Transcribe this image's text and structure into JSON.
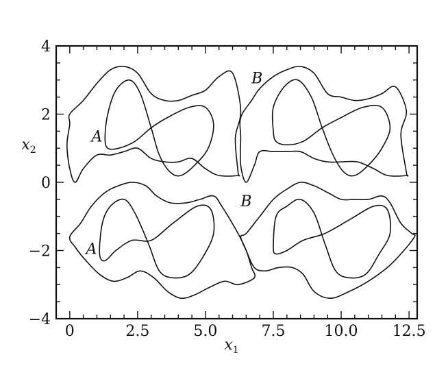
{
  "chart_data": {
    "type": "line",
    "title": "",
    "xlabel": "x",
    "xlabel_sub": "1",
    "ylabel": "x",
    "ylabel_sub": "2",
    "xlim": [
      -0.5,
      12.8
    ],
    "ylim": [
      -4,
      4
    ],
    "x_ticks": [
      0,
      2.5,
      5.0,
      7.5,
      10.0,
      12.5
    ],
    "x_tick_labels": [
      "0",
      "2.5",
      "5.0",
      "7.5",
      "10.0",
      "12.5"
    ],
    "y_ticks": [
      -4,
      -2,
      0,
      2,
      4
    ],
    "y_tick_labels": [
      "−4",
      "−2",
      "0",
      "2",
      "4"
    ],
    "grid": false,
    "annotations": [
      {
        "text": "A",
        "x": 1.0,
        "y": 1.2
      },
      {
        "text": "B",
        "x": 6.9,
        "y": 2.9
      },
      {
        "text": "A",
        "x": 0.8,
        "y": -2.1
      },
      {
        "text": "B",
        "x": 6.5,
        "y": -0.7
      }
    ],
    "series": [
      {
        "points": [
          [
            0,
            2
          ],
          [
            0.5,
            2.4
          ],
          [
            1,
            2.9
          ],
          [
            1.5,
            3.3
          ],
          [
            2,
            3.4
          ],
          [
            2.5,
            3.2
          ],
          [
            3,
            2.6
          ],
          [
            3.5,
            2.4
          ],
          [
            4,
            2.4
          ],
          [
            4.5,
            2.55
          ],
          [
            5,
            2.7
          ],
          [
            5.5,
            3.1
          ],
          [
            6,
            3.2
          ],
          [
            6.3,
            2.1
          ],
          [
            6.1,
            1.3
          ],
          [
            6.2,
            0.3
          ],
          [
            6.2,
            0.2
          ],
          [
            5.5,
            0.2
          ],
          [
            5,
            0.4
          ],
          [
            4.5,
            0.7
          ],
          [
            4,
            0.6
          ],
          [
            3.5,
            0.6
          ],
          [
            3,
            0.7
          ],
          [
            2.5,
            1.0
          ],
          [
            2,
            0.9
          ],
          [
            1.5,
            0.8
          ],
          [
            1,
            0.8
          ],
          [
            0.5,
            0.4
          ],
          [
            0.2,
            0
          ],
          [
            0,
            0.4
          ],
          [
            -0.1,
            1.1
          ],
          [
            0,
            1.7
          ],
          [
            0,
            2
          ]
        ]
      },
      {
        "points": [
          [
            6.3,
            1.9
          ],
          [
            6.7,
            2.4
          ],
          [
            7,
            2.75
          ],
          [
            7.5,
            3.1
          ],
          [
            8,
            3.3
          ],
          [
            8.5,
            3.4
          ],
          [
            9,
            3.2
          ],
          [
            9.5,
            2.6
          ],
          [
            10,
            2.5
          ],
          [
            10.5,
            2.4
          ],
          [
            11,
            2.45
          ],
          [
            11.5,
            2.6
          ],
          [
            12,
            2.8
          ],
          [
            12.4,
            2.1
          ],
          [
            12.2,
            1.4
          ],
          [
            12.4,
            0.3
          ],
          [
            12.4,
            0.2
          ],
          [
            11.7,
            0.2
          ],
          [
            11.2,
            0.4
          ],
          [
            10.6,
            0.6
          ],
          [
            10,
            0.6
          ],
          [
            9.5,
            0.6
          ],
          [
            9,
            0.7
          ],
          [
            8.5,
            0.9
          ],
          [
            8,
            0.9
          ],
          [
            7.5,
            0.9
          ],
          [
            7,
            0.9
          ],
          [
            6.8,
            0.5
          ],
          [
            6.5,
            0
          ],
          [
            6.3,
            0.5
          ],
          [
            6.3,
            1.3
          ],
          [
            6.3,
            1.9
          ]
        ]
      },
      {
        "points": [
          [
            1.3,
            1.3
          ],
          [
            1.4,
            2.0
          ],
          [
            1.7,
            2.7
          ],
          [
            2.2,
            3.0
          ],
          [
            2.6,
            2.6
          ],
          [
            3,
            1.6
          ],
          [
            3.3,
            0.8
          ],
          [
            3.7,
            0.3
          ],
          [
            4.1,
            0.2
          ],
          [
            4.6,
            0.5
          ],
          [
            5.1,
            1.0
          ],
          [
            5.3,
            1.7
          ],
          [
            5.0,
            2.2
          ],
          [
            4.4,
            2.2
          ],
          [
            3.6,
            1.9
          ],
          [
            3,
            1.6
          ],
          [
            2.4,
            1.2
          ],
          [
            1.8,
            1.0
          ],
          [
            1.4,
            1.0
          ],
          [
            1.3,
            1.3
          ]
        ]
      },
      {
        "points": [
          [
            7.5,
            1.5
          ],
          [
            7.5,
            2.2
          ],
          [
            7.9,
            2.8
          ],
          [
            8.4,
            3.0
          ],
          [
            8.9,
            2.5
          ],
          [
            9.3,
            1.6
          ],
          [
            9.7,
            0.8
          ],
          [
            10.1,
            0.3
          ],
          [
            10.5,
            0.2
          ],
          [
            11,
            0.5
          ],
          [
            11.5,
            1.0
          ],
          [
            11.8,
            1.6
          ],
          [
            11.5,
            2.2
          ],
          [
            10.8,
            2.2
          ],
          [
            10,
            1.9
          ],
          [
            9.3,
            1.6
          ],
          [
            8.6,
            1.2
          ],
          [
            8,
            1.1
          ],
          [
            7.6,
            1.2
          ],
          [
            7.5,
            1.5
          ]
        ]
      },
      {
        "points": [
          [
            0,
            -1.6
          ],
          [
            0.4,
            -1.2
          ],
          [
            0.8,
            -0.7
          ],
          [
            1.3,
            -0.3
          ],
          [
            1.8,
            -0.1
          ],
          [
            2.3,
            0
          ],
          [
            2.8,
            -0.1
          ],
          [
            3.2,
            -0.4
          ],
          [
            3.7,
            -0.6
          ],
          [
            4.3,
            -0.6
          ],
          [
            4.8,
            -0.5
          ],
          [
            5.3,
            -0.4
          ],
          [
            5.6,
            -0.7
          ],
          [
            6.2,
            -1.5
          ],
          [
            6.5,
            -2.0
          ],
          [
            6.7,
            -2.5
          ],
          [
            6.8,
            -2.8
          ],
          [
            6.2,
            -3.0
          ],
          [
            5.7,
            -2.9
          ],
          [
            5.1,
            -3.1
          ],
          [
            4.6,
            -3.3
          ],
          [
            4.1,
            -3.4
          ],
          [
            3.6,
            -3.2
          ],
          [
            3.1,
            -2.8
          ],
          [
            2.6,
            -2.6
          ],
          [
            2.1,
            -2.8
          ],
          [
            1.6,
            -2.9
          ],
          [
            1.1,
            -2.7
          ],
          [
            0.6,
            -2.3
          ],
          [
            0.2,
            -1.9
          ],
          [
            0,
            -1.6
          ]
        ]
      },
      {
        "points": [
          [
            6.5,
            -1.5
          ],
          [
            7,
            -1.0
          ],
          [
            7.5,
            -0.5
          ],
          [
            8,
            -0.2
          ],
          [
            8.5,
            0
          ],
          [
            9,
            -0.1
          ],
          [
            9.5,
            -0.3
          ],
          [
            10,
            -0.5
          ],
          [
            10.5,
            -0.5
          ],
          [
            11,
            -0.5
          ],
          [
            11.5,
            -0.4
          ],
          [
            11.8,
            -0.6
          ],
          [
            12.2,
            -1.2
          ],
          [
            12.6,
            -1.5
          ],
          [
            12.7,
            -1.6
          ],
          [
            12.2,
            -2.1
          ],
          [
            11.7,
            -2.5
          ],
          [
            11,
            -2.9
          ],
          [
            10.3,
            -3.2
          ],
          [
            9.6,
            -3.4
          ],
          [
            9,
            -3.2
          ],
          [
            8.6,
            -2.7
          ],
          [
            8.2,
            -2.5
          ],
          [
            7.7,
            -2.5
          ],
          [
            7.2,
            -2.6
          ],
          [
            6.8,
            -2.5
          ],
          [
            6.5,
            -2.0
          ],
          [
            6.3,
            -1.6
          ],
          [
            6.5,
            -1.5
          ]
        ]
      },
      {
        "points": [
          [
            1.1,
            -2.1
          ],
          [
            1.2,
            -1.2
          ],
          [
            1.5,
            -0.7
          ],
          [
            2,
            -0.5
          ],
          [
            2.4,
            -0.9
          ],
          [
            2.9,
            -1.8
          ],
          [
            3.3,
            -2.6
          ],
          [
            3.8,
            -2.8
          ],
          [
            4.4,
            -2.7
          ],
          [
            4.9,
            -2.2
          ],
          [
            5.3,
            -1.5
          ],
          [
            5.2,
            -0.8
          ],
          [
            4.7,
            -0.7
          ],
          [
            3.8,
            -1.2
          ],
          [
            3,
            -1.7
          ],
          [
            2.3,
            -1.7
          ],
          [
            1.7,
            -2.0
          ],
          [
            1.3,
            -2.3
          ],
          [
            1.1,
            -2.1
          ]
        ]
      },
      {
        "points": [
          [
            7.5,
            -1.9
          ],
          [
            7.6,
            -1.0
          ],
          [
            8,
            -0.7
          ],
          [
            8.5,
            -0.5
          ],
          [
            9,
            -0.9
          ],
          [
            9.4,
            -1.8
          ],
          [
            9.8,
            -2.6
          ],
          [
            10.3,
            -2.8
          ],
          [
            10.9,
            -2.7
          ],
          [
            11.4,
            -2.1
          ],
          [
            11.8,
            -1.5
          ],
          [
            11.7,
            -0.8
          ],
          [
            11.2,
            -0.7
          ],
          [
            10.3,
            -1.1
          ],
          [
            9.4,
            -1.5
          ],
          [
            8.6,
            -1.7
          ],
          [
            8,
            -2.0
          ],
          [
            7.6,
            -2.1
          ],
          [
            7.5,
            -1.9
          ]
        ]
      }
    ]
  }
}
